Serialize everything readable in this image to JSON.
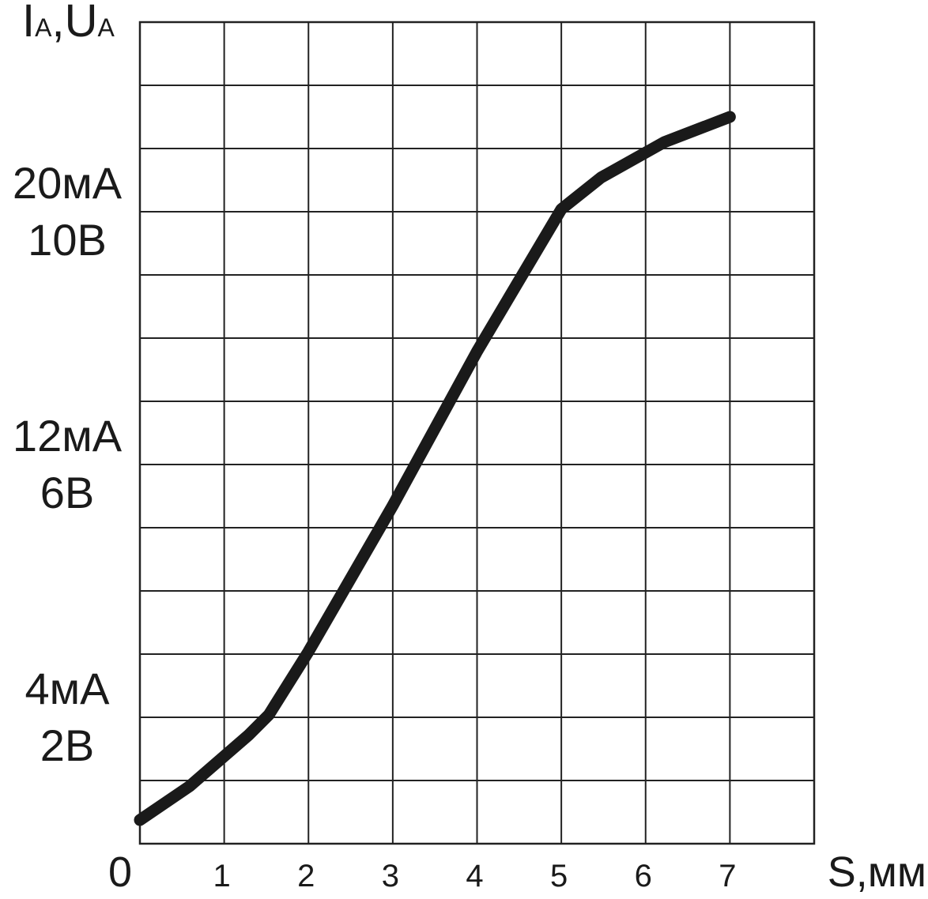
{
  "chart_data": {
    "type": "line",
    "ylabel": [
      "I",
      "A",
      ",U",
      "A"
    ],
    "xlabel": "S,мм",
    "x": [
      0,
      0.59,
      1.29,
      1.53,
      2.0,
      3.0,
      4.0,
      5.0,
      5.47,
      6.22,
      7.0
    ],
    "series": [
      {
        "color": "#1a1a1a",
        "values": [
          0.375,
          0.91,
          1.72,
          2.04,
          3.04,
          5.35,
          7.79,
          10.04,
          10.54,
          11.1,
          11.5
        ]
      }
    ],
    "xlim": [
      0,
      8
    ],
    "ylim": [
      0,
      13
    ],
    "xticks": [
      0,
      1,
      2,
      3,
      4,
      5,
      6,
      7
    ],
    "xgrid": [
      1,
      2,
      3,
      4,
      5,
      6,
      7
    ],
    "ygrid": [
      1,
      2,
      3,
      4,
      5,
      6,
      7,
      8,
      9,
      10,
      11,
      12
    ],
    "yticks": [
      {
        "value": 2,
        "label": "4мА\n2В"
      },
      {
        "value": 6,
        "label": "12мА\n6В"
      },
      {
        "value": 10,
        "label": "20мА\n10В"
      }
    ],
    "grid": true
  }
}
